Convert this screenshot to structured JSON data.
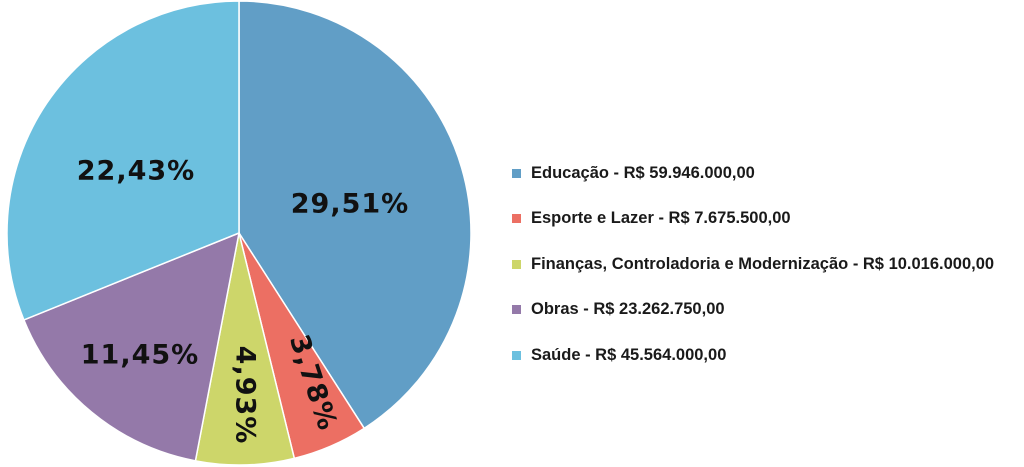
{
  "chart_data": {
    "type": "pie",
    "title": "",
    "legend_position": "right",
    "slices": [
      {
        "label": "Educação - R$ 59.946.000,00",
        "value": 59946000,
        "percent_label": "29,51%",
        "color": "#619ec6"
      },
      {
        "label": "Esporte e Lazer - R$ 7.675.500,00",
        "value": 7675500,
        "percent_label": "3,78%",
        "color": "#ec6f63"
      },
      {
        "label": "Finanças, Controladoria e Modernização - R$ 10.016.000,00",
        "value": 10016000,
        "percent_label": "4,93%",
        "color": "#cdd66a"
      },
      {
        "label": "Obras - R$ 23.262.750,00",
        "value": 23262750,
        "percent_label": "11,45%",
        "color": "#9479a9"
      },
      {
        "label": "Saúde - R$ 45.564.000,00",
        "value": 45564000,
        "percent_label": "22,43%",
        "color": "#6cc0df"
      }
    ]
  }
}
